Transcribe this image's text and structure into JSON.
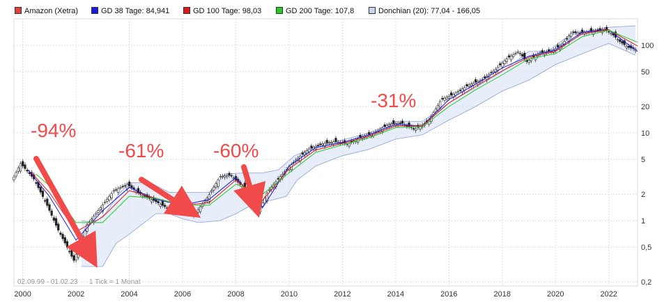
{
  "chart_data": {
    "type": "line",
    "title": "",
    "xlabel": "",
    "ylabel": "",
    "y_scale": "log",
    "ylim": [
      0.18,
      200
    ],
    "xlim": [
      "1999-09",
      "2023-02"
    ],
    "grid": true,
    "legend_placement": "top-left",
    "legend": [
      {
        "name": "Amazon (Xetra)",
        "color": "#e04040"
      },
      {
        "name": "GD 38 Tage: 84,941",
        "color": "#1a1adc"
      },
      {
        "name": "GD 100 Tage: 98,03",
        "color": "#dd1a1a"
      },
      {
        "name": "GD 200 Tage: 107,8",
        "color": "#22cc22"
      },
      {
        "name": "Donchian (20): 77,04 - 166,05",
        "color": "#c8d4f0"
      }
    ],
    "x_ticks": [
      "2000",
      "2002",
      "2004",
      "2006",
      "2008",
      "2010",
      "2012",
      "2014",
      "2016",
      "2018",
      "2020",
      "2022"
    ],
    "y_ticks": [
      "100",
      "50",
      "20",
      "10",
      "5",
      "2",
      "1",
      "0,5",
      "0,2"
    ],
    "y_tick_values": [
      100,
      50,
      20,
      10,
      5,
      2,
      1,
      0.5,
      0.2
    ],
    "series": [
      {
        "name": "Amazon (Xetra)",
        "color": "#222222",
        "x": [
          1999.67,
          2000.0,
          2000.5,
          2001.0,
          2001.4,
          2001.75,
          2002.0,
          2002.5,
          2003.0,
          2003.5,
          2004.0,
          2004.5,
          2005.0,
          2005.5,
          2006.0,
          2006.5,
          2007.0,
          2007.5,
          2007.9,
          2008.3,
          2008.6,
          2008.9,
          2009.3,
          2009.8,
          2010.3,
          2010.8,
          2011.3,
          2011.8,
          2012.3,
          2012.8,
          2013.3,
          2013.8,
          2014.3,
          2014.8,
          2015.3,
          2015.8,
          2016.3,
          2016.8,
          2017.3,
          2017.8,
          2018.3,
          2018.7,
          2019.0,
          2019.5,
          2019.9,
          2020.3,
          2020.7,
          2021.0,
          2021.5,
          2021.9,
          2022.2,
          2022.5,
          2022.8,
          2023.08
        ],
        "values": [
          2.8,
          4.5,
          3.0,
          1.5,
          0.8,
          0.5,
          0.35,
          0.9,
          1.4,
          2.2,
          2.6,
          2.0,
          1.7,
          1.4,
          1.6,
          1.15,
          1.8,
          3.2,
          3.3,
          2.5,
          2.3,
          1.2,
          2.2,
          3.3,
          4.8,
          6.5,
          7.5,
          8.0,
          7.5,
          9.0,
          10.0,
          12.5,
          13.0,
          11.0,
          13.5,
          24.0,
          28.0,
          35.0,
          40.0,
          52.0,
          72.0,
          85.0,
          65.0,
          82.0,
          85.0,
          100.0,
          140.0,
          138.0,
          145.0,
          152.0,
          135.0,
          110.0,
          95.0,
          90.0
        ]
      },
      {
        "name": "GD 38 Tage",
        "color": "#1a1adc",
        "x": [
          2000.2,
          2001.0,
          2002.0,
          2003.0,
          2004.0,
          2005.0,
          2006.0,
          2007.0,
          2008.0,
          2009.0,
          2010.0,
          2011.0,
          2012.0,
          2013.0,
          2014.0,
          2015.0,
          2016.0,
          2017.0,
          2018.0,
          2019.0,
          2020.0,
          2021.0,
          2022.0,
          2023.08
        ],
        "values": [
          3.8,
          1.9,
          0.6,
          1.3,
          2.4,
          1.75,
          1.5,
          1.75,
          3.1,
          1.4,
          4.2,
          6.8,
          7.8,
          9.5,
          12.5,
          12.0,
          24.0,
          36.0,
          55.0,
          75.0,
          88.0,
          140.0,
          150.0,
          85.0
        ]
      },
      {
        "name": "GD 100 Tage",
        "color": "#dd1a1a",
        "x": [
          2000.3,
          2001.0,
          2002.0,
          2003.0,
          2004.0,
          2005.0,
          2006.0,
          2007.0,
          2008.0,
          2009.0,
          2010.0,
          2011.0,
          2012.0,
          2013.0,
          2014.0,
          2015.0,
          2016.0,
          2017.0,
          2018.0,
          2019.0,
          2020.0,
          2021.0,
          2022.0,
          2023.08
        ],
        "values": [
          3.6,
          2.1,
          0.75,
          1.1,
          2.2,
          1.8,
          1.5,
          1.6,
          2.9,
          1.7,
          3.9,
          6.4,
          7.6,
          9.2,
          12.0,
          12.0,
          22.0,
          34.0,
          51.0,
          73.0,
          85.0,
          135.0,
          150.0,
          98.0
        ]
      },
      {
        "name": "GD 200 Tage",
        "color": "#22cc22",
        "x": [
          2000.5,
          2001.0,
          2002.0,
          2003.0,
          2004.0,
          2005.0,
          2006.0,
          2007.0,
          2008.0,
          2009.0,
          2010.0,
          2011.0,
          2012.0,
          2013.0,
          2014.0,
          2015.0,
          2016.0,
          2017.0,
          2018.0,
          2019.0,
          2020.0,
          2021.0,
          2022.0,
          2023.08
        ],
        "values": [
          3.4,
          2.5,
          0.95,
          0.95,
          1.9,
          1.8,
          1.5,
          1.5,
          2.6,
          2.0,
          3.5,
          6.0,
          7.3,
          8.8,
          11.5,
          11.8,
          20.0,
          31.0,
          46.0,
          70.0,
          80.0,
          125.0,
          148.0,
          108.0
        ]
      },
      {
        "name": "Donchian (20) upper",
        "color": "#8b9fd8",
        "x": [
          2002.2,
          2002.7,
          2003.1,
          2003.6,
          2004.0,
          2004.8,
          2005.5,
          2006.2,
          2007.0,
          2007.6,
          2008.3,
          2009.0,
          2009.6,
          2010.2,
          2011.0,
          2012.0,
          2013.0,
          2014.0,
          2015.0,
          2016.0,
          2017.0,
          2018.0,
          2019.0,
          2019.7,
          2020.6,
          2021.5,
          2022.0,
          2023.0
        ],
        "values": [
          1.0,
          0.95,
          1.2,
          2.0,
          2.7,
          2.7,
          2.1,
          2.1,
          2.1,
          3.4,
          3.5,
          3.5,
          3.8,
          5.5,
          7.0,
          8.3,
          10.0,
          13.5,
          13.5,
          22.0,
          33.0,
          50.0,
          85.0,
          85.0,
          135.0,
          150.0,
          160.0,
          166.0
        ]
      },
      {
        "name": "Donchian (20) lower",
        "color": "#8b9fd8",
        "x": [
          2002.2,
          2003.0,
          2003.5,
          2004.0,
          2005.0,
          2005.5,
          2006.0,
          2006.6,
          2007.4,
          2008.0,
          2008.9,
          2009.3,
          2009.9,
          2010.3,
          2011.0,
          2012.0,
          2013.0,
          2014.0,
          2015.0,
          2016.0,
          2017.0,
          2018.0,
          2019.0,
          2020.0,
          2021.0,
          2022.0,
          2023.0
        ],
        "values": [
          0.3,
          0.3,
          0.55,
          0.7,
          1.2,
          1.2,
          1.05,
          0.95,
          1.0,
          1.2,
          1.7,
          1.7,
          1.9,
          2.9,
          4.2,
          5.5,
          6.5,
          8.5,
          9.5,
          14.0,
          20.0,
          30.0,
          40.0,
          60.0,
          80.0,
          105.0,
          77.0
        ]
      }
    ],
    "annotations": [
      {
        "text": "-94%",
        "from_x": 2000.5,
        "to_x": 2002.4
      },
      {
        "text": "-61%",
        "from_x": 2004.4,
        "to_x": 2006.5
      },
      {
        "text": "-60%",
        "from_x": 2008.2,
        "to_x": 2008.7
      },
      {
        "text": "-31%",
        "from_x": 2014.0,
        "to_x": 2014.0
      }
    ],
    "footer": {
      "date_range": "02.09.99 - 01.02.23",
      "tick_note": "1 Tick = 1 Monat"
    }
  }
}
